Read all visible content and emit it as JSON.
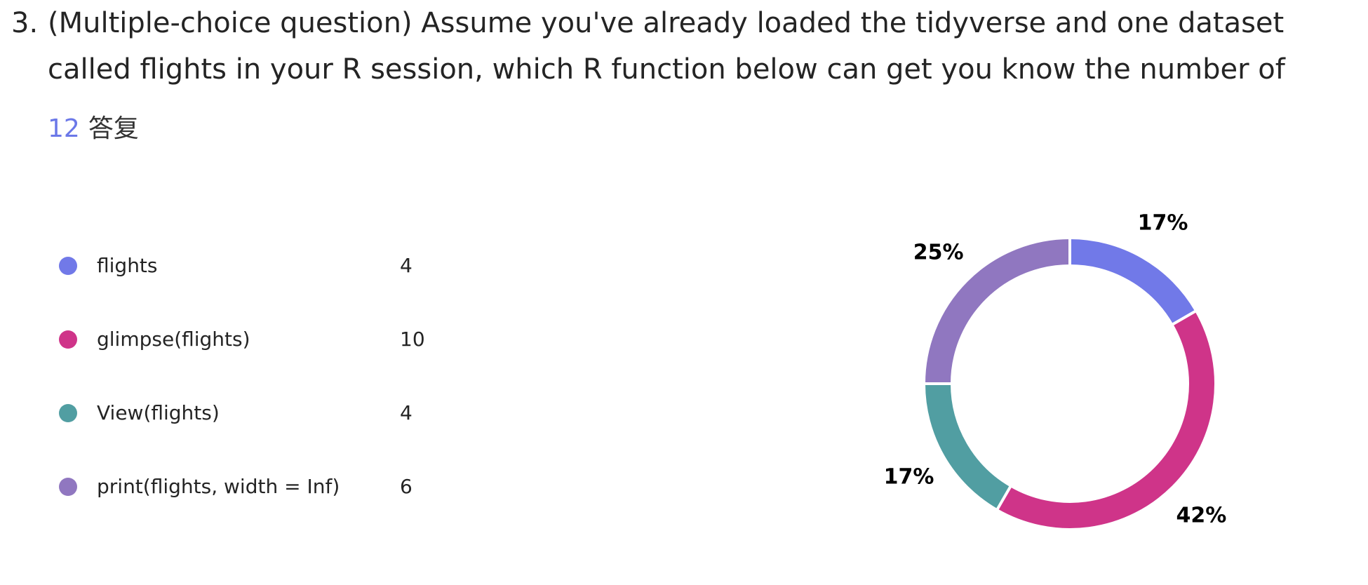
{
  "question": {
    "number": "3.",
    "text": "(Multiple-choice question) Assume you've already loaded the tidyverse and one dataset called flights in your R session, which R function below can get you know the number of rows AND..."
  },
  "responses": {
    "count": "12",
    "label": "答复"
  },
  "colors": {
    "accent": "#6b78e8"
  },
  "chart_data": {
    "type": "pie",
    "style": "donut",
    "categories": [
      "flights",
      "glimpse(flights)",
      "View(flights)",
      "print(flights, width = Inf)"
    ],
    "values": [
      4,
      10,
      4,
      6
    ],
    "percent_labels": [
      "17%",
      "42%",
      "17%",
      "25%"
    ],
    "colors": [
      "#7179e8",
      "#cf3489",
      "#519ea2",
      "#9077c0"
    ],
    "legend": "left"
  }
}
